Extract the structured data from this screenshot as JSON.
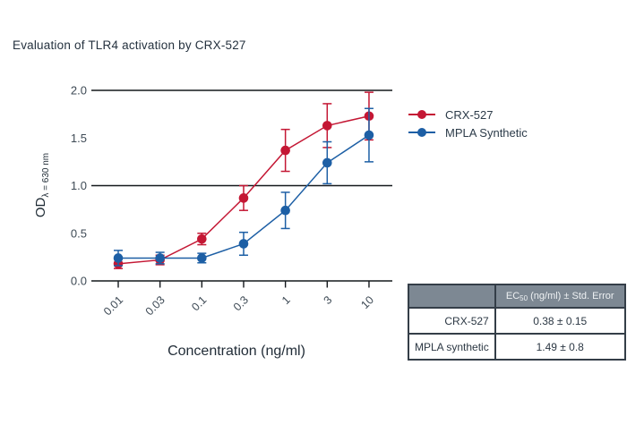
{
  "axis": {
    "y_main": "OD",
    "y_sub": "λ = 630 nm"
  },
  "chart_data": {
    "type": "line",
    "title": "Evaluation of TLR4 activation by CRX-527",
    "xlabel": "Concentration (ng/ml)",
    "ylabel": "OD λ = 630 nm",
    "x_scale": "log",
    "categories": [
      "0.01",
      "0.03",
      "0.1",
      "0.3",
      "1",
      "3",
      "10"
    ],
    "ylim": [
      0,
      2
    ],
    "ytick_labels": [
      "0.0",
      "0.5",
      "1.0",
      "1.5",
      "2.0"
    ],
    "ytick_values": [
      0,
      0.5,
      1,
      1.5,
      2
    ],
    "grid_values": [
      0,
      1,
      2
    ],
    "grid_on": "horizontal lines at 0.0, 1.0, 2.0 only",
    "legend_position": "right-top",
    "series": [
      {
        "name": "CRX-527",
        "color": "#c41734",
        "values": [
          0.18,
          0.22,
          0.44,
          0.87,
          1.37,
          1.63,
          1.73
        ],
        "errors": [
          0.05,
          0.05,
          0.06,
          0.13,
          0.22,
          0.23,
          0.25
        ]
      },
      {
        "name": "MPLA Synthetic",
        "color": "#1d5fa5",
        "values": [
          0.24,
          0.24,
          0.24,
          0.39,
          0.74,
          1.24,
          1.53
        ],
        "errors": [
          0.08,
          0.06,
          0.05,
          0.12,
          0.19,
          0.22,
          0.28
        ]
      }
    ]
  },
  "table": {
    "header": {
      "ec": "EC",
      "ec_sub": "50",
      "rest": "(ng/ml) ± Std. Error"
    },
    "rows": [
      {
        "label": "CRX-527",
        "value": "0.38 ± 0.15"
      },
      {
        "label": "MPLA synthetic",
        "value": "1.49 ± 0.8"
      }
    ]
  },
  "colors": {
    "grid": "#14181c",
    "tick_text": "#3e4a55",
    "table_header_bg": "#7d8893",
    "table_border": "#343e48"
  }
}
